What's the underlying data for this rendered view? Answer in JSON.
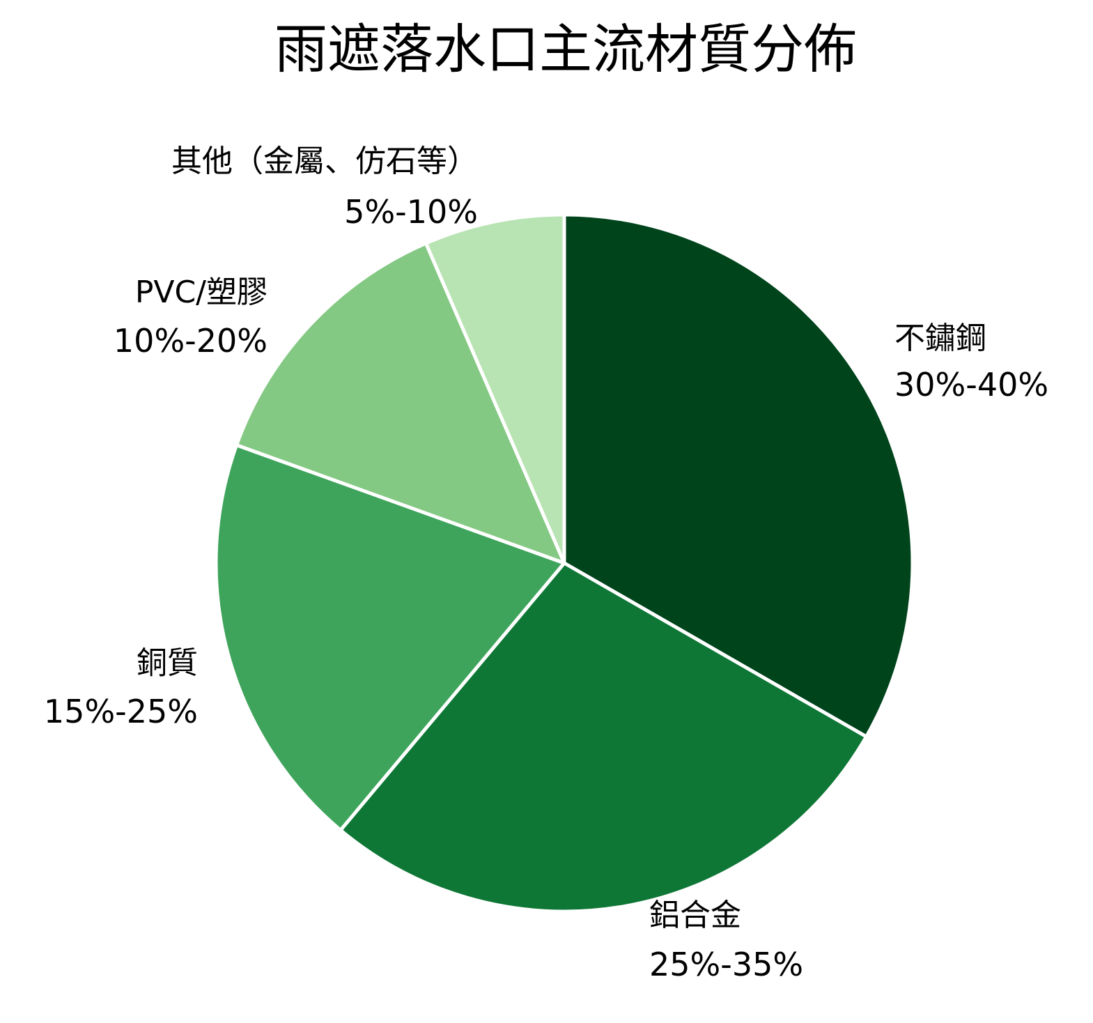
{
  "chart_data": {
    "type": "pie",
    "title": "雨遮落水口主流材質分佈",
    "start_angle": "12 o'clock",
    "direction": "clockwise",
    "slice_border": "#ffffff",
    "slices": [
      {
        "label": "不鏽鋼",
        "range": "30%-40%",
        "value": 33.3,
        "color": "#00441b"
      },
      {
        "label": "鋁合金",
        "range": "25%-35%",
        "value": 27.8,
        "color": "#0e7735"
      },
      {
        "label": "銅質",
        "range": "15%-25%",
        "value": 19.4,
        "color": "#3ea45b"
      },
      {
        "label": "PVC/塑膠",
        "range": "10%-20%",
        "value": 13.0,
        "color": "#83c883"
      },
      {
        "label": "其他（金屬、仿石等）",
        "range": "5%-10%",
        "value": 6.5,
        "color": "#b8e3b2"
      }
    ]
  }
}
